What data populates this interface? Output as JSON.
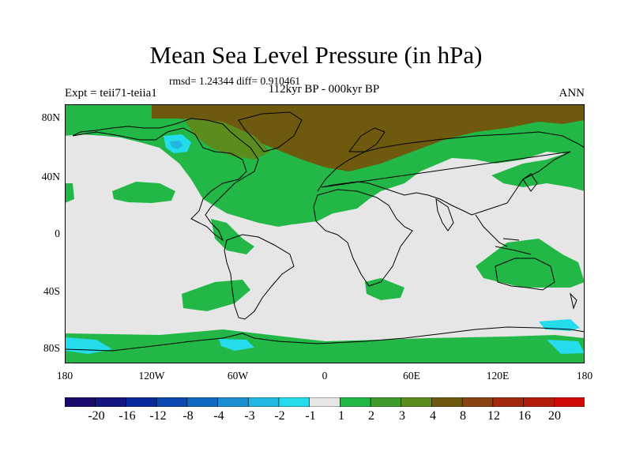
{
  "title": "Mean Sea Level Pressure (in hPa)",
  "stats": "rmsd= 1.24344 diff= 0.910461",
  "experiment": "Expt = teii71-teiia1",
  "subtitle": "112kyr BP - 000kyr BP",
  "season": "ANN",
  "lat_labels": [
    "80N",
    "40N",
    "0",
    "40S",
    "80S"
  ],
  "lon_labels": [
    "180",
    "120W",
    "60W",
    "0",
    "60E",
    "120E",
    "180"
  ],
  "colorbar": {
    "labels": [
      "-20",
      "-16",
      "-12",
      "-8",
      "-4",
      "-3",
      "-2",
      "-1",
      "1",
      "2",
      "3",
      "4",
      "8",
      "12",
      "16",
      "20"
    ],
    "colors": [
      "#1a0a6b",
      "#15157f",
      "#0a2a9a",
      "#0d47b0",
      "#1168c0",
      "#1c8ed1",
      "#21b7e0",
      "#24dcec",
      "#e6e6e6",
      "#23b748",
      "#3e9b2c",
      "#5d8c1e",
      "#6e5a0f",
      "#8a4312",
      "#a22a0e",
      "#b21c0a",
      "#cf0a06"
    ]
  },
  "colors": {
    "ocean_neutral": "#e6e6e6",
    "positive_small": "#23b748",
    "positive_mid": "#3e9b2c",
    "positive_high": "#6e5a0f",
    "negative_small": "#24dcec",
    "coastline": "#000000"
  }
}
